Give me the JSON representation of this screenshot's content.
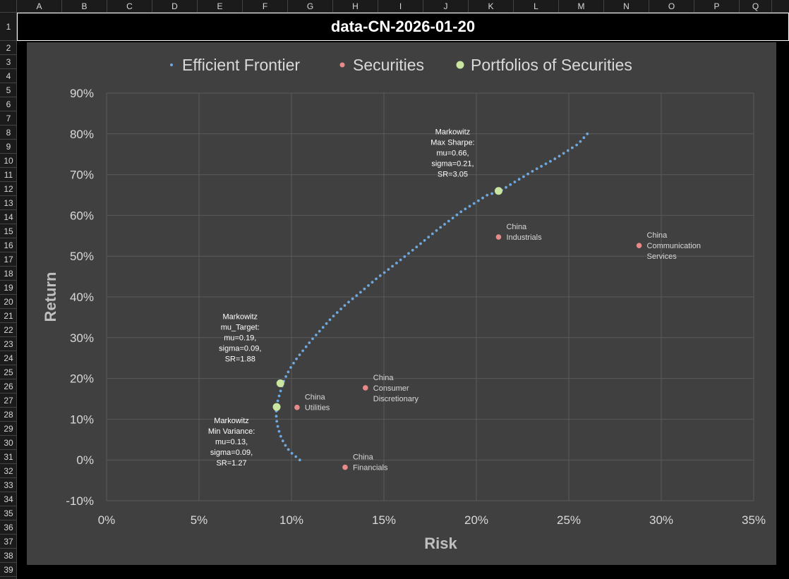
{
  "sheet": {
    "columns": [
      "A",
      "B",
      "C",
      "D",
      "E",
      "F",
      "G",
      "H",
      "I",
      "J",
      "K",
      "L",
      "M",
      "N",
      "O",
      "P",
      "Q"
    ],
    "rows": [
      "1",
      "2",
      "3",
      "4",
      "5",
      "6",
      "7",
      "8",
      "9",
      "10",
      "11",
      "12",
      "13",
      "14",
      "15",
      "16",
      "17",
      "18",
      "19",
      "20",
      "21",
      "22",
      "23",
      "24",
      "25",
      "26",
      "27",
      "28",
      "29",
      "30",
      "31",
      "32",
      "33",
      "34",
      "35",
      "36",
      "37",
      "38",
      "39"
    ],
    "title": "data-CN-2026-01-20"
  },
  "colors": {
    "frontier": "#6fa8dc",
    "securities": "#e88a8a",
    "portfolios": "#c9e5a0",
    "chart_bg": "#404040",
    "gridline": "#5a5a5a"
  },
  "chart_data": {
    "type": "scatter",
    "xlabel": "Risk",
    "ylabel": "Return",
    "xlim": [
      0,
      0.35
    ],
    "ylim": [
      -0.1,
      0.9
    ],
    "x_ticks": [
      "0%",
      "5%",
      "10%",
      "15%",
      "20%",
      "25%",
      "30%",
      "35%"
    ],
    "y_ticks": [
      "-10%",
      "0%",
      "10%",
      "20%",
      "30%",
      "40%",
      "50%",
      "60%",
      "70%",
      "80%",
      "90%"
    ],
    "legend_position": "top",
    "grid": true,
    "series": [
      {
        "name": "Efficient Frontier",
        "icon": "small-dot",
        "points": [
          [
            0.1045,
            0.0
          ],
          [
            0.1005,
            0.015
          ],
          [
            0.0975,
            0.03
          ],
          [
            0.0955,
            0.045
          ],
          [
            0.094,
            0.06
          ],
          [
            0.093,
            0.075
          ],
          [
            0.0922,
            0.09
          ],
          [
            0.0918,
            0.105
          ],
          [
            0.0918,
            0.12
          ],
          [
            0.092,
            0.13
          ],
          [
            0.0926,
            0.145
          ],
          [
            0.0935,
            0.16
          ],
          [
            0.0945,
            0.175
          ],
          [
            0.0955,
            0.19
          ],
          [
            0.0975,
            0.21
          ],
          [
            0.1,
            0.23
          ],
          [
            0.103,
            0.25
          ],
          [
            0.1065,
            0.27
          ],
          [
            0.111,
            0.295
          ],
          [
            0.116,
            0.32
          ],
          [
            0.122,
            0.35
          ],
          [
            0.129,
            0.38
          ],
          [
            0.137,
            0.41
          ],
          [
            0.146,
            0.445
          ],
          [
            0.156,
            0.48
          ],
          [
            0.167,
            0.52
          ],
          [
            0.179,
            0.565
          ],
          [
            0.192,
            0.61
          ],
          [
            0.206,
            0.65
          ],
          [
            0.213,
            0.66
          ],
          [
            0.22,
            0.68
          ],
          [
            0.231,
            0.71
          ],
          [
            0.243,
            0.74
          ],
          [
            0.255,
            0.775
          ],
          [
            0.26,
            0.8
          ]
        ]
      },
      {
        "name": "Securities",
        "icon": "dot",
        "points": [
          {
            "x": 0.212,
            "y": 0.547,
            "label": [
              "China",
              "Industrials"
            ]
          },
          {
            "x": 0.288,
            "y": 0.526,
            "label": [
              "China",
              "Communication",
              "Services"
            ]
          },
          {
            "x": 0.14,
            "y": 0.177,
            "label": [
              "China",
              "Consumer",
              "Discretionary"
            ]
          },
          {
            "x": 0.103,
            "y": 0.129,
            "label": [
              "China",
              "Utilities"
            ]
          },
          {
            "x": 0.129,
            "y": -0.018,
            "label": [
              "China",
              "Financials"
            ]
          }
        ]
      },
      {
        "name": "Portfolios of Securities",
        "icon": "large-dot",
        "points": [
          {
            "x": 0.212,
            "y": 0.66,
            "label": [
              "Markowitz",
              "Max Sharpe:",
              "mu=0.66,",
              "sigma=0.21,",
              "SR=3.05"
            ]
          },
          {
            "x": 0.094,
            "y": 0.188,
            "label": [
              "Markowitz",
              "mu_Target:",
              "mu=0.19,",
              "sigma=0.09,",
              "SR=1.88"
            ]
          },
          {
            "x": 0.092,
            "y": 0.13,
            "label": [
              "Markowitz",
              "Min Variance:",
              "mu=0.13,",
              "sigma=0.09,",
              "SR=1.27"
            ]
          }
        ]
      }
    ]
  }
}
